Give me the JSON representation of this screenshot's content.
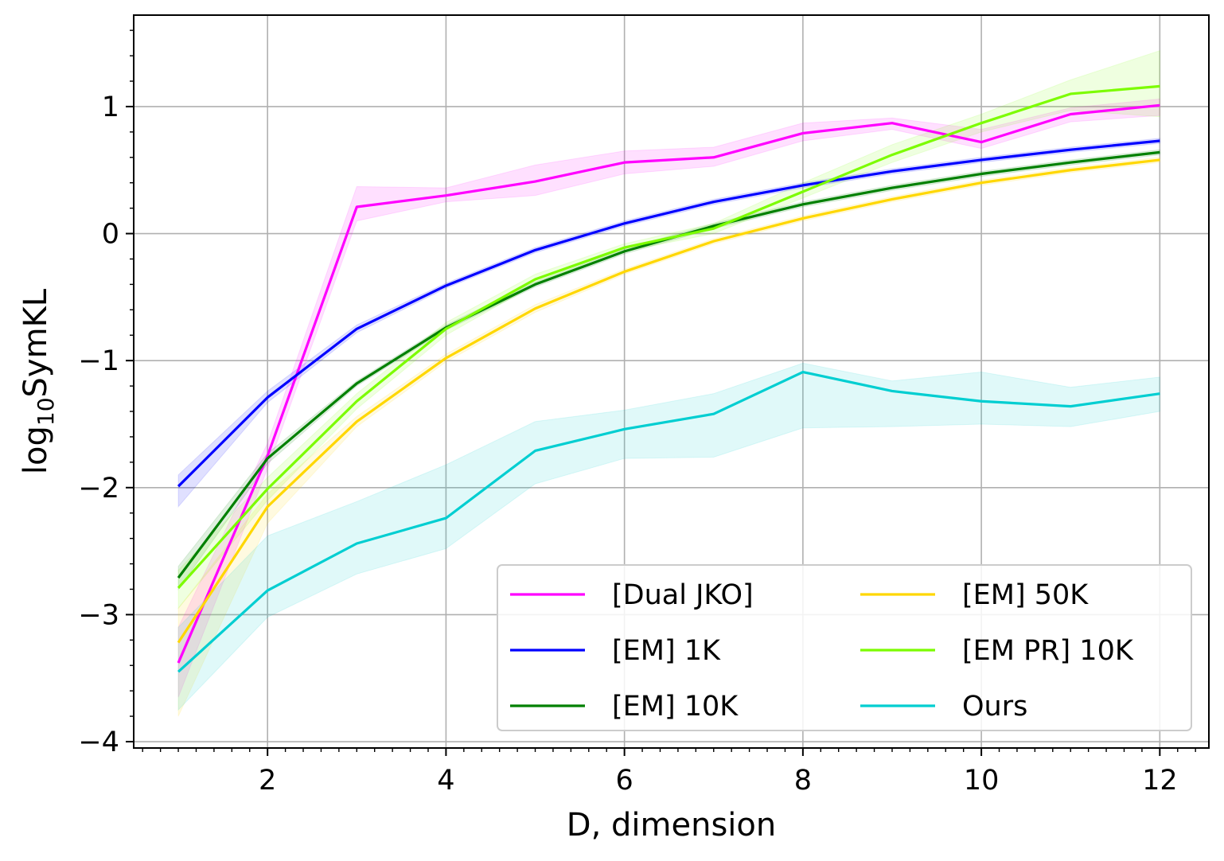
{
  "chart_data": {
    "type": "line",
    "xlabel": "D, dimension",
    "ylabel_main": "log",
    "ylabel_sub": "10",
    "ylabel_rest": "SymKL",
    "xlim": [
      0.5,
      12.55
    ],
    "ylim": [
      -4.05,
      1.72
    ],
    "xticks": [
      2,
      4,
      6,
      8,
      10,
      12
    ],
    "xtick_labels": [
      "2",
      "4",
      "6",
      "8",
      "10",
      "12"
    ],
    "yticks": [
      -4,
      -3,
      -2,
      -1,
      0,
      1
    ],
    "ytick_labels": [
      "−4",
      "−3",
      "−2",
      "−1",
      "0",
      "1"
    ],
    "grid": true,
    "legend_position": "bottom-right",
    "legend_columns": 2,
    "x": [
      1,
      2,
      3,
      4,
      5,
      6,
      7,
      8,
      9,
      10,
      11,
      12
    ],
    "series": [
      {
        "name": "[Dual JKO]",
        "color": "#ff00ff",
        "values": [
          -3.38,
          -1.75,
          0.21,
          0.3,
          0.41,
          0.56,
          0.6,
          0.79,
          0.87,
          0.72,
          0.94,
          1.01
        ],
        "lower": [
          -3.65,
          -1.85,
          0.1,
          0.25,
          0.3,
          0.47,
          0.53,
          0.73,
          0.82,
          0.67,
          0.88,
          0.93
        ],
        "upper": [
          -3.1,
          -1.65,
          0.37,
          0.36,
          0.54,
          0.65,
          0.68,
          0.87,
          0.91,
          0.82,
          0.99,
          1.06
        ]
      },
      {
        "name": "[EM] 1K",
        "color": "#0000ff",
        "values": [
          -1.99,
          -1.29,
          -0.75,
          -0.41,
          -0.13,
          0.08,
          0.25,
          0.38,
          0.49,
          0.58,
          0.66,
          0.73
        ],
        "lower": [
          -2.15,
          -1.33,
          -0.78,
          -0.43,
          -0.15,
          0.06,
          0.23,
          0.36,
          0.47,
          0.56,
          0.64,
          0.71
        ],
        "upper": [
          -1.9,
          -1.24,
          -0.72,
          -0.39,
          -0.11,
          0.1,
          0.27,
          0.4,
          0.51,
          0.6,
          0.68,
          0.75
        ]
      },
      {
        "name": "[EM] 10K",
        "color": "#008000",
        "values": [
          -2.71,
          -1.77,
          -1.18,
          -0.74,
          -0.4,
          -0.14,
          0.06,
          0.23,
          0.36,
          0.47,
          0.56,
          0.64
        ],
        "lower": [
          -2.8,
          -1.81,
          -1.2,
          -0.76,
          -0.42,
          -0.16,
          0.04,
          0.21,
          0.34,
          0.45,
          0.54,
          0.62
        ],
        "upper": [
          -2.62,
          -1.73,
          -1.16,
          -0.72,
          -0.38,
          -0.12,
          0.08,
          0.25,
          0.38,
          0.49,
          0.58,
          0.66
        ]
      },
      {
        "name": "[EM] 50K",
        "color": "#ffd700",
        "values": [
          -3.22,
          -2.15,
          -1.48,
          -0.98,
          -0.59,
          -0.3,
          -0.06,
          0.12,
          0.27,
          0.4,
          0.5,
          0.58
        ],
        "lower": [
          -3.8,
          -2.28,
          -1.52,
          -1.01,
          -0.62,
          -0.32,
          -0.08,
          0.1,
          0.25,
          0.38,
          0.48,
          0.56
        ],
        "upper": [
          -2.95,
          -2.05,
          -1.44,
          -0.95,
          -0.56,
          -0.28,
          -0.04,
          0.14,
          0.29,
          0.42,
          0.52,
          0.6
        ]
      },
      {
        "name": "[EM PR] 10K",
        "color": "#7cfc00",
        "values": [
          -2.79,
          -2.01,
          -1.32,
          -0.75,
          -0.36,
          -0.11,
          0.04,
          0.33,
          0.62,
          0.87,
          1.1,
          1.16
        ],
        "lower": [
          -2.95,
          -2.1,
          -1.38,
          -0.8,
          -0.4,
          -0.14,
          0.0,
          0.28,
          0.56,
          0.8,
          0.97,
          0.92
        ],
        "upper": [
          -2.65,
          -1.92,
          -1.26,
          -0.7,
          -0.32,
          -0.08,
          0.08,
          0.4,
          0.7,
          0.94,
          1.21,
          1.44
        ]
      },
      {
        "name": "Ours",
        "color": "#00ced1",
        "values": [
          -3.45,
          -2.81,
          -2.44,
          -2.24,
          -1.71,
          -1.54,
          -1.42,
          -1.09,
          -1.24,
          -1.32,
          -1.36,
          -1.26
        ],
        "lower": [
          -3.75,
          -3.02,
          -2.68,
          -2.48,
          -1.97,
          -1.77,
          -1.76,
          -1.53,
          -1.52,
          -1.5,
          -1.52,
          -1.4
        ],
        "upper": [
          -3.1,
          -2.38,
          -2.11,
          -1.82,
          -1.48,
          -1.39,
          -1.26,
          -1.02,
          -1.16,
          -1.09,
          -1.21,
          -1.13
        ]
      }
    ]
  }
}
